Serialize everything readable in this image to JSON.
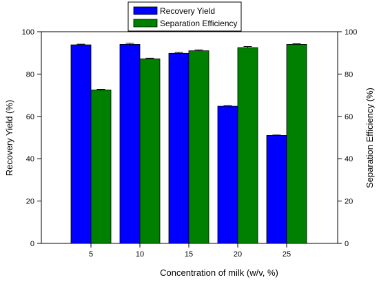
{
  "chart_data": {
    "type": "bar",
    "categories": [
      "5",
      "10",
      "15",
      "20",
      "25"
    ],
    "xlabel": "Concentration of milk (w/v, %)",
    "ylabel_left": "Recovery Yield (%)",
    "ylabel_right": "Separation Efficiency (%)",
    "ylim": [
      0,
      100
    ],
    "yticks": [
      0,
      20,
      40,
      60,
      80,
      100
    ],
    "legend_position": "top-center",
    "grid": false,
    "series": [
      {
        "name": "Recovery Yield",
        "color": "#0000ff",
        "axis": "left",
        "values": [
          93.8,
          94.0,
          89.8,
          64.8,
          51.0
        ],
        "errors": [
          0.3,
          0.6,
          0.4,
          0.3,
          0.2
        ]
      },
      {
        "name": "Separation Efficiency",
        "color": "#008000",
        "axis": "right",
        "values": [
          72.5,
          87.2,
          91.0,
          92.5,
          94.0
        ],
        "errors": [
          0.3,
          0.3,
          0.4,
          0.5,
          0.3
        ]
      }
    ]
  }
}
